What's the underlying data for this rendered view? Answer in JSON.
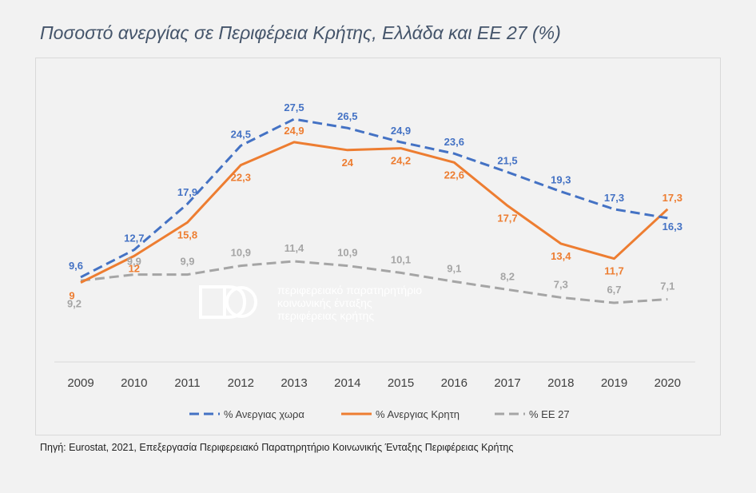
{
  "title": "Ποσοστό ανεργίας σε Περιφέρεια Κρήτης, Ελλάδα και ΕΕ 27 (%)",
  "source": "Πηγή: Eurostat,  2021, Επεξεργασία Περιφερειακό Παρατηρητήριο Κοινωνικής Ένταξης Περιφέρειας Κρήτης",
  "watermark": {
    "line1": "περιφερειακό παρατηρητήριο",
    "line2": "κοινωνικής ένταξης",
    "line3": "περιφέρειας κρήτης"
  },
  "chart_data": {
    "type": "line",
    "x": [
      "2009",
      "2010",
      "2011",
      "2012",
      "2013",
      "2014",
      "2015",
      "2016",
      "2017",
      "2018",
      "2019",
      "2020"
    ],
    "ylim": [
      0,
      30
    ],
    "grid": false,
    "legend_position": "bottom",
    "series": [
      {
        "name": "% Ανεργιας χωρα",
        "color": "#4472c4",
        "dash": true,
        "values": [
          9.6,
          12.7,
          17.9,
          24.5,
          27.5,
          26.5,
          24.9,
          23.6,
          21.5,
          19.3,
          17.3,
          16.3
        ],
        "labels": [
          "9,6",
          "12,7",
          "17,9",
          "24,5",
          "27,5",
          "26,5",
          "24,9",
          "23,6",
          "21,5",
          "19,3",
          "17,3",
          "16,3"
        ]
      },
      {
        "name": "% Ανεργιας Κρητη",
        "color": "#ed7d31",
        "dash": false,
        "values": [
          9,
          12,
          15.8,
          22.3,
          24.9,
          24,
          24.2,
          22.6,
          17.7,
          13.4,
          11.7,
          17.3
        ],
        "labels": [
          "9",
          "12",
          "15,8",
          "22,3",
          "24,9",
          "24",
          "24,2",
          "22,6",
          "17,7",
          "13,4",
          "11,7",
          "17,3"
        ]
      },
      {
        "name": "% ΕΕ 27",
        "color": "#a5a5a5",
        "dash": true,
        "values": [
          9.2,
          9.9,
          9.9,
          10.9,
          11.4,
          10.9,
          10.1,
          9.1,
          8.2,
          7.3,
          6.7,
          7.1
        ],
        "labels": [
          "9,2",
          "9,9",
          "9,9",
          "10,9",
          "11,4",
          "10,9",
          "10,1",
          "9,1",
          "8,2",
          "7,3",
          "6,7",
          "7,1"
        ]
      }
    ]
  }
}
